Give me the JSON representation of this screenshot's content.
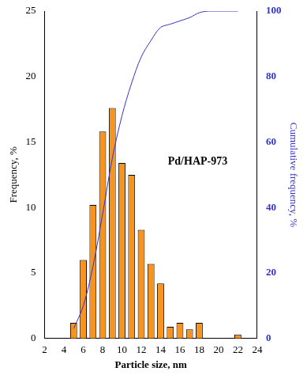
{
  "chart_data": {
    "type": "histogram",
    "x_label": "Particle size, nm",
    "y_label": "Frequency, %",
    "y2_label": "Cumulative frequency, %",
    "annotation": "Pd/HAP-973",
    "bins": [
      4.5,
      5.5,
      6.5,
      7.5,
      8.5,
      9.5,
      10.5,
      11.5,
      12.5,
      13.5,
      14.5,
      15.5,
      16.5,
      17.5,
      18.5,
      19.5,
      20.5,
      21.5,
      22.5
    ],
    "series": [
      {
        "type": "bar",
        "color": "#f7941d",
        "values": [
          1.2,
          6.0,
          10.2,
          15.8,
          17.6,
          13.4,
          12.5,
          8.3,
          5.7,
          4.2,
          0.9,
          1.2,
          0.7,
          1.2,
          0,
          0,
          0,
          0.3
        ]
      },
      {
        "type": "line",
        "color": "#3333cc",
        "axis": "y2",
        "x": [
          5,
          6,
          7,
          8,
          9,
          10,
          11,
          12,
          13,
          14,
          15,
          16,
          17,
          18,
          19,
          20,
          21,
          22
        ],
        "values": [
          3,
          10,
          22,
          38,
          55,
          68,
          78,
          86,
          91,
          95,
          96,
          97,
          98,
          99.5,
          100,
          100,
          100,
          100
        ]
      }
    ],
    "xlim": [
      2,
      24
    ],
    "xticks": [
      2,
      4,
      6,
      8,
      10,
      12,
      14,
      16,
      18,
      20,
      22,
      24
    ],
    "ylim": [
      0,
      25
    ],
    "yticks": [
      0,
      5,
      10,
      15,
      20,
      25
    ],
    "y2lim": [
      0,
      100
    ],
    "y2ticks": [
      0,
      20,
      40,
      60,
      80,
      100
    ],
    "grid": false
  }
}
